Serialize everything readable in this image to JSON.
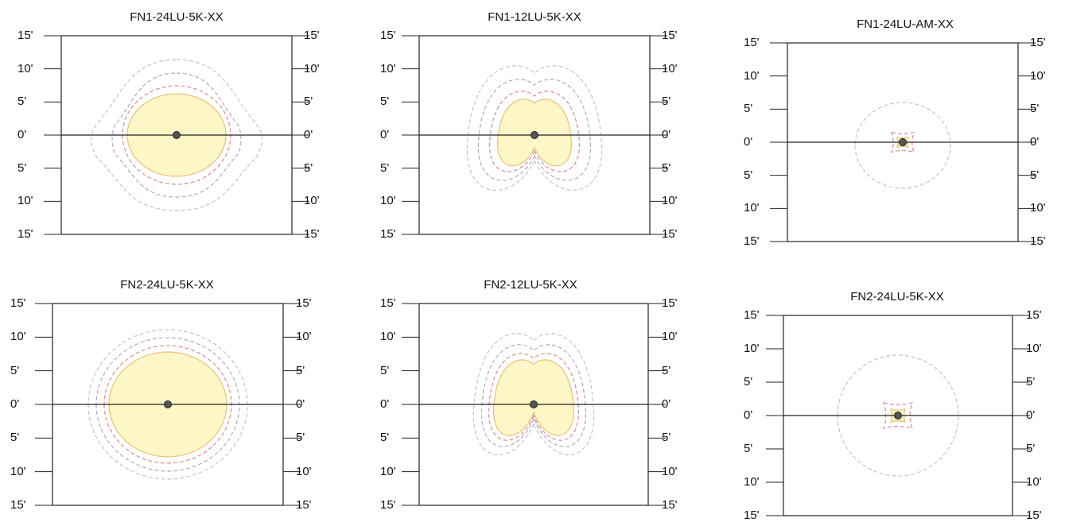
{
  "panels": [
    {
      "title": "FN1-24LU-5K-XX",
      "pattern": "wide-lobed"
    },
    {
      "title": "FN1-12LU-5K-XX",
      "pattern": "heart-narrow"
    },
    {
      "title": "FN1-24LU-AM-XX",
      "pattern": "small"
    },
    {
      "title": "FN2-24LU-5K-XX",
      "pattern": "round-large"
    },
    {
      "title": "FN2-12LU-5K-XX",
      "pattern": "heart-wide"
    },
    {
      "title": "FN2-24LU-5K-XX",
      "pattern": "ring-small"
    }
  ],
  "tick_labels": [
    "15'",
    "10'",
    "5'",
    "0'",
    "5'",
    "10'",
    "15'"
  ],
  "colors": {
    "frame": "#222222",
    "center_dot": "#555555",
    "fill": "#fdf6c6",
    "contours": [
      "#e8c27a",
      "#d9908a",
      "#b8a6c9",
      "#c4c4cc"
    ]
  }
}
